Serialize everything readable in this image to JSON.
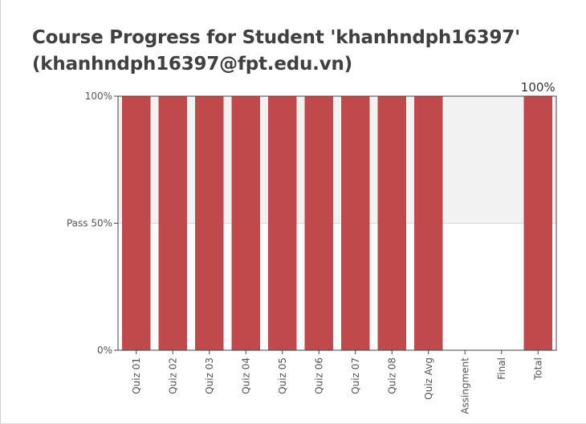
{
  "page": {
    "title_line1": "Course Progress for Student 'khanhndph16397'",
    "title_line2": "(khanhndph16397@fpt.edu.vn)"
  },
  "chart_data": {
    "type": "bar",
    "title": "Course Progress for Student 'khanhndph16397' (khanhndph16397@fpt.edu.vn)",
    "categories": [
      "Quiz 01",
      "Quiz 02",
      "Quiz 03",
      "Quiz 04",
      "Quiz 05",
      "Quiz 06",
      "Quiz 07",
      "Quiz 08",
      "Quiz Avg",
      "Assingment",
      "Final",
      "Total"
    ],
    "values": [
      100,
      100,
      100,
      100,
      100,
      100,
      100,
      100,
      100,
      0,
      0,
      100
    ],
    "ylim": [
      0,
      100
    ],
    "yticks": [
      {
        "value": 0,
        "label": "0%"
      },
      {
        "value": 50,
        "label": "Pass 50%"
      },
      {
        "value": 100,
        "label": "100%"
      }
    ],
    "pass_threshold": 50,
    "data_labels": [
      {
        "category": "Total",
        "label": "100%"
      }
    ],
    "bar_color": "#c0494b",
    "pass_region_color": "#f2f2f2",
    "grid": false,
    "legend": "none"
  }
}
